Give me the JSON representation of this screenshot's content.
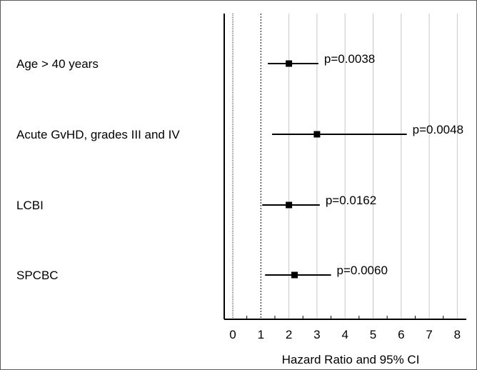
{
  "chart_data": {
    "type": "forest",
    "xlabel": "Hazard Ratio and 95% CI",
    "xlim": [
      0,
      8
    ],
    "xticks": [
      0,
      1,
      2,
      3,
      4,
      5,
      6,
      7,
      8
    ],
    "x_tick_labels": [
      "0",
      "1",
      "2",
      "3",
      "4",
      "5",
      "6",
      "7",
      "8"
    ],
    "reference_lines": [
      0,
      1
    ],
    "grid": "vertical",
    "rows": [
      {
        "label": "Age > 40 years",
        "hr": 2.0,
        "ci_low": 1.25,
        "ci_high": 3.05,
        "p": "p=0.0038"
      },
      {
        "label": "Acute GvHD, grades III and IV",
        "hr": 3.0,
        "ci_low": 1.4,
        "ci_high": 6.2,
        "p": "p=0.0048"
      },
      {
        "label": "LCBI",
        "hr": 2.0,
        "ci_low": 1.05,
        "ci_high": 3.1,
        "p": "p=0.0162"
      },
      {
        "label": "SPCBC",
        "hr": 2.2,
        "ci_low": 1.15,
        "ci_high": 3.5,
        "p": "p=0.0060"
      }
    ],
    "colors": {
      "marks": "#000000",
      "grid": "#c8c8c8",
      "axis": "#000000"
    }
  }
}
